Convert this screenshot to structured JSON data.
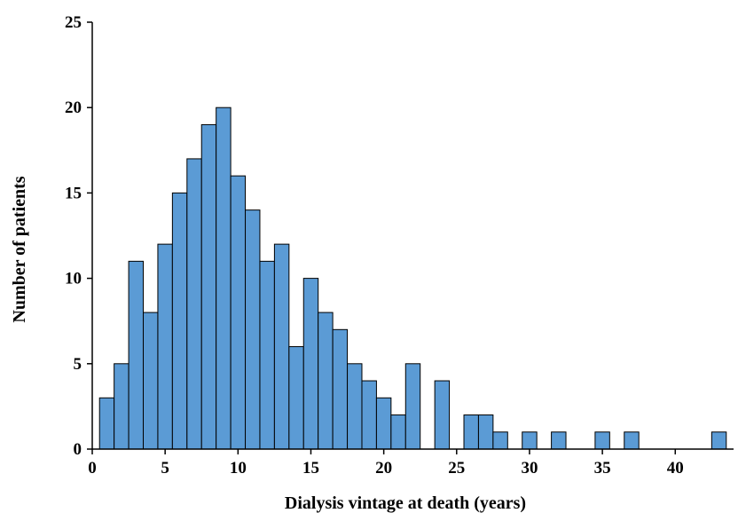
{
  "chart_data": {
    "type": "bar",
    "title": "",
    "xlabel": "Dialysis vintage at death (years)",
    "ylabel": "Number of patients",
    "xlim": [
      0,
      44
    ],
    "ylim": [
      0,
      25
    ],
    "x_ticks": [
      0,
      5,
      10,
      15,
      20,
      25,
      30,
      35,
      40
    ],
    "y_ticks": [
      0,
      5,
      10,
      15,
      20,
      25
    ],
    "bar_color": "#5b9bd5",
    "bar_edge_color": "#000000",
    "grid": false,
    "legend": "none",
    "bins": [
      {
        "x": 1,
        "value": 3
      },
      {
        "x": 2,
        "value": 5
      },
      {
        "x": 3,
        "value": 11
      },
      {
        "x": 4,
        "value": 8
      },
      {
        "x": 5,
        "value": 12
      },
      {
        "x": 6,
        "value": 15
      },
      {
        "x": 7,
        "value": 17
      },
      {
        "x": 8,
        "value": 19
      },
      {
        "x": 9,
        "value": 20
      },
      {
        "x": 10,
        "value": 16
      },
      {
        "x": 11,
        "value": 14
      },
      {
        "x": 12,
        "value": 11
      },
      {
        "x": 13,
        "value": 12
      },
      {
        "x": 14,
        "value": 6
      },
      {
        "x": 15,
        "value": 10
      },
      {
        "x": 16,
        "value": 8
      },
      {
        "x": 17,
        "value": 7
      },
      {
        "x": 18,
        "value": 5
      },
      {
        "x": 19,
        "value": 4
      },
      {
        "x": 20,
        "value": 3
      },
      {
        "x": 21,
        "value": 2
      },
      {
        "x": 22,
        "value": 5
      },
      {
        "x": 24,
        "value": 4
      },
      {
        "x": 26,
        "value": 2
      },
      {
        "x": 27,
        "value": 2
      },
      {
        "x": 28,
        "value": 1
      },
      {
        "x": 30,
        "value": 1
      },
      {
        "x": 32,
        "value": 1
      },
      {
        "x": 35,
        "value": 1
      },
      {
        "x": 37,
        "value": 1
      },
      {
        "x": 43,
        "value": 1
      }
    ]
  }
}
